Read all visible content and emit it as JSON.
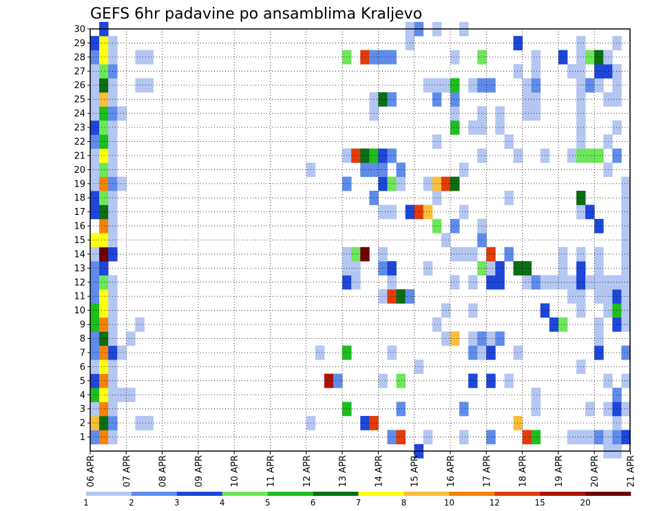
{
  "chart_data": {
    "type": "heatmap",
    "title": "GEFS 6hr padavine po ansamblima Kraljevo",
    "xlabel": "",
    "ylabel": "",
    "x_ticks": [
      "06 APR",
      "07 APR",
      "08 APR",
      "09 APR",
      "10 APR",
      "11 APR",
      "12 APR",
      "13 APR",
      "14 APR",
      "15 APR",
      "16 APR",
      "17 APR",
      "18 APR",
      "19 APR",
      "20 APR",
      "21 APR"
    ],
    "y_ticks": [
      "1",
      "2",
      "3",
      "4",
      "5",
      "6",
      "7",
      "8",
      "9",
      "10",
      "11",
      "12",
      "13",
      "14",
      "15",
      "16",
      "17",
      "18",
      "19",
      "20",
      "21",
      "22",
      "23",
      "24",
      "25",
      "26",
      "27",
      "28",
      "29",
      "30"
    ],
    "xlim": [
      0,
      60
    ],
    "ylim": [
      0,
      30
    ],
    "grid": true,
    "legend_position": "bottom",
    "legend": {
      "labels": [
        "1",
        "2",
        "3",
        "4",
        "5",
        "6",
        "7",
        "8",
        "10",
        "12",
        "15",
        "20"
      ],
      "colors": [
        "#b4c6f2",
        "#5f8ceb",
        "#1e46d8",
        "#6ee65a",
        "#1ebe1e",
        "#0a6e14",
        "#ffff14",
        "#fabe3c",
        "#f5820a",
        "#e13c0a",
        "#aa1400",
        "#6e0000"
      ]
    },
    "cells": [
      [
        3,
        1,
        2
      ],
      [
        3,
        2,
        8
      ],
      [
        3,
        3,
        1
      ],
      [
        3,
        4,
        5
      ],
      [
        3,
        5,
        3
      ],
      [
        3,
        6,
        1
      ],
      [
        3,
        7,
        2
      ],
      [
        3,
        8,
        2
      ],
      [
        3,
        9,
        5
      ],
      [
        3,
        10,
        5
      ],
      [
        3,
        11,
        2
      ],
      [
        3,
        12,
        2
      ],
      [
        3,
        13,
        2
      ],
      [
        3,
        14,
        1
      ],
      [
        3,
        15,
        7
      ],
      [
        3,
        17,
        3
      ],
      [
        3,
        18,
        3
      ],
      [
        3,
        19,
        1
      ],
      [
        3,
        20,
        1
      ],
      [
        3,
        21,
        1
      ],
      [
        3,
        22,
        2
      ],
      [
        3,
        23,
        3
      ],
      [
        3,
        24,
        1
      ],
      [
        3,
        25,
        1
      ],
      [
        3,
        26,
        1
      ],
      [
        3,
        27,
        1
      ],
      [
        3,
        28,
        2
      ],
      [
        3,
        29,
        3
      ],
      [
        4,
        1,
        9
      ],
      [
        4,
        2,
        6
      ],
      [
        4,
        3,
        9
      ],
      [
        4,
        4,
        7
      ],
      [
        4,
        5,
        9
      ],
      [
        4,
        6,
        7
      ],
      [
        4,
        7,
        9
      ],
      [
        4,
        8,
        6
      ],
      [
        4,
        9,
        9
      ],
      [
        4,
        10,
        7
      ],
      [
        4,
        11,
        7
      ],
      [
        4,
        12,
        4
      ],
      [
        4,
        13,
        3
      ],
      [
        4,
        14,
        12
      ],
      [
        4,
        15,
        7
      ],
      [
        4,
        16,
        9
      ],
      [
        4,
        17,
        6
      ],
      [
        4,
        18,
        4
      ],
      [
        4,
        19,
        9
      ],
      [
        4,
        20,
        4
      ],
      [
        4,
        21,
        7
      ],
      [
        4,
        22,
        5
      ],
      [
        4,
        23,
        4
      ],
      [
        4,
        24,
        5
      ],
      [
        4,
        25,
        8
      ],
      [
        4,
        26,
        6
      ],
      [
        4,
        27,
        4
      ],
      [
        4,
        28,
        7
      ],
      [
        4,
        29,
        7
      ],
      [
        4,
        30,
        3
      ],
      [
        5,
        1,
        1
      ],
      [
        5,
        2,
        2
      ],
      [
        5,
        3,
        1
      ],
      [
        5,
        4,
        1
      ],
      [
        5,
        5,
        1
      ],
      [
        5,
        6,
        1
      ],
      [
        5,
        7,
        3
      ],
      [
        5,
        8,
        1
      ],
      [
        5,
        9,
        1
      ],
      [
        5,
        10,
        1
      ],
      [
        5,
        11,
        1
      ],
      [
        5,
        12,
        1
      ],
      [
        5,
        14,
        3
      ],
      [
        5,
        15,
        1
      ],
      [
        5,
        16,
        1
      ],
      [
        5,
        17,
        1
      ],
      [
        5,
        18,
        1
      ],
      [
        5,
        19,
        2
      ],
      [
        5,
        20,
        1
      ],
      [
        5,
        21,
        1
      ],
      [
        5,
        22,
        1
      ],
      [
        5,
        23,
        1
      ],
      [
        5,
        24,
        2
      ],
      [
        5,
        25,
        1
      ],
      [
        5,
        26,
        1
      ],
      [
        5,
        27,
        2
      ],
      [
        5,
        28,
        1
      ],
      [
        5,
        29,
        1
      ],
      [
        6,
        4,
        1
      ],
      [
        6,
        7,
        1
      ],
      [
        6,
        19,
        1
      ],
      [
        6,
        24,
        1
      ],
      [
        7,
        4,
        1
      ],
      [
        7,
        8,
        1
      ],
      [
        8,
        2,
        1
      ],
      [
        8,
        9,
        1
      ],
      [
        8,
        26,
        1
      ],
      [
        8,
        28,
        1
      ],
      [
        9,
        2,
        1
      ],
      [
        9,
        26,
        1
      ],
      [
        9,
        28,
        1
      ],
      [
        27,
        2,
        1
      ],
      [
        27,
        20,
        1
      ],
      [
        28,
        7,
        1
      ],
      [
        29,
        5,
        11
      ],
      [
        30,
        5,
        2
      ],
      [
        31,
        3,
        5
      ],
      [
        31,
        7,
        5
      ],
      [
        31,
        12,
        3
      ],
      [
        31,
        13,
        1
      ],
      [
        31,
        14,
        1
      ],
      [
        31,
        19,
        2
      ],
      [
        31,
        21,
        1
      ],
      [
        31,
        28,
        4
      ],
      [
        32,
        12,
        1
      ],
      [
        32,
        13,
        1
      ],
      [
        32,
        14,
        4
      ],
      [
        32,
        21,
        10
      ],
      [
        33,
        2,
        3
      ],
      [
        33,
        14,
        12
      ],
      [
        33,
        20,
        2
      ],
      [
        33,
        21,
        6
      ],
      [
        33,
        28,
        10
      ],
      [
        34,
        2,
        10
      ],
      [
        34,
        18,
        2
      ],
      [
        34,
        20,
        2
      ],
      [
        34,
        21,
        5
      ],
      [
        34,
        24,
        1
      ],
      [
        34,
        25,
        1
      ],
      [
        34,
        28,
        2
      ],
      [
        35,
        5,
        1
      ],
      [
        35,
        11,
        1
      ],
      [
        35,
        13,
        2
      ],
      [
        35,
        14,
        1
      ],
      [
        35,
        17,
        1
      ],
      [
        35,
        19,
        3
      ],
      [
        35,
        20,
        2
      ],
      [
        35,
        21,
        3
      ],
      [
        35,
        25,
        6
      ],
      [
        35,
        28,
        2
      ],
      [
        36,
        1,
        2
      ],
      [
        36,
        7,
        1
      ],
      [
        36,
        11,
        10
      ],
      [
        36,
        12,
        1
      ],
      [
        36,
        13,
        3
      ],
      [
        36,
        17,
        1
      ],
      [
        36,
        19,
        4
      ],
      [
        36,
        21,
        2
      ],
      [
        36,
        25,
        2
      ],
      [
        36,
        28,
        2
      ],
      [
        37,
        1,
        10
      ],
      [
        37,
        3,
        2
      ],
      [
        37,
        5,
        4
      ],
      [
        37,
        11,
        6
      ],
      [
        37,
        19,
        1
      ],
      [
        37,
        20,
        2
      ],
      [
        38,
        11,
        2
      ],
      [
        38,
        17,
        3
      ],
      [
        38,
        29,
        1
      ],
      [
        38,
        30,
        1
      ],
      [
        39,
        0,
        3
      ],
      [
        39,
        6,
        1
      ],
      [
        39,
        17,
        10
      ],
      [
        39,
        30,
        2
      ],
      [
        40,
        1,
        1
      ],
      [
        40,
        13,
        1
      ],
      [
        40,
        17,
        8
      ],
      [
        40,
        19,
        1
      ],
      [
        40,
        26,
        1
      ],
      [
        41,
        9,
        1
      ],
      [
        41,
        16,
        4
      ],
      [
        41,
        18,
        1
      ],
      [
        41,
        19,
        8
      ],
      [
        41,
        22,
        1
      ],
      [
        41,
        25,
        2
      ],
      [
        41,
        26,
        1
      ],
      [
        41,
        30,
        1
      ],
      [
        42,
        8,
        1
      ],
      [
        42,
        10,
        1
      ],
      [
        42,
        15,
        1
      ],
      [
        42,
        19,
        10
      ],
      [
        42,
        26,
        1
      ],
      [
        43,
        8,
        8
      ],
      [
        43,
        12,
        1
      ],
      [
        43,
        14,
        1
      ],
      [
        43,
        16,
        2
      ],
      [
        43,
        19,
        6
      ],
      [
        43,
        23,
        5
      ],
      [
        43,
        24,
        1
      ],
      [
        43,
        25,
        2
      ],
      [
        43,
        26,
        5
      ],
      [
        43,
        28,
        1
      ],
      [
        44,
        1,
        1
      ],
      [
        44,
        3,
        2
      ],
      [
        44,
        14,
        1
      ],
      [
        44,
        17,
        1
      ],
      [
        44,
        20,
        1
      ],
      [
        44,
        30,
        1
      ],
      [
        45,
        5,
        3
      ],
      [
        45,
        7,
        2
      ],
      [
        45,
        8,
        1
      ],
      [
        45,
        10,
        1
      ],
      [
        45,
        12,
        1
      ],
      [
        45,
        14,
        1
      ],
      [
        45,
        23,
        1
      ],
      [
        45,
        26,
        1
      ],
      [
        46,
        7,
        1
      ],
      [
        46,
        8,
        2
      ],
      [
        46,
        13,
        4
      ],
      [
        46,
        15,
        2
      ],
      [
        46,
        16,
        1
      ],
      [
        46,
        21,
        1
      ],
      [
        46,
        23,
        1
      ],
      [
        46,
        24,
        1
      ],
      [
        46,
        26,
        2
      ],
      [
        46,
        28,
        4
      ],
      [
        47,
        1,
        2
      ],
      [
        47,
        5,
        3
      ],
      [
        47,
        7,
        3
      ],
      [
        47,
        8,
        1
      ],
      [
        47,
        12,
        3
      ],
      [
        47,
        13,
        1
      ],
      [
        47,
        14,
        10
      ],
      [
        47,
        26,
        2
      ],
      [
        48,
        8,
        2
      ],
      [
        48,
        12,
        3
      ],
      [
        48,
        13,
        3
      ],
      [
        48,
        23,
        1
      ],
      [
        48,
        24,
        1
      ],
      [
        49,
        5,
        1
      ],
      [
        49,
        14,
        2
      ],
      [
        49,
        18,
        1
      ],
      [
        49,
        22,
        1
      ],
      [
        50,
        2,
        8
      ],
      [
        50,
        7,
        1
      ],
      [
        50,
        13,
        6
      ],
      [
        50,
        21,
        1
      ],
      [
        50,
        27,
        1
      ],
      [
        50,
        29,
        3
      ],
      [
        51,
        1,
        10
      ],
      [
        51,
        12,
        1
      ],
      [
        51,
        13,
        6
      ],
      [
        51,
        24,
        1
      ],
      [
        51,
        25,
        1
      ],
      [
        51,
        26,
        1
      ],
      [
        52,
        1,
        5
      ],
      [
        52,
        3,
        1
      ],
      [
        52,
        4,
        1
      ],
      [
        52,
        12,
        2
      ],
      [
        52,
        24,
        1
      ],
      [
        52,
        25,
        1
      ],
      [
        52,
        26,
        2
      ],
      [
        52,
        27,
        1
      ],
      [
        52,
        28,
        1
      ],
      [
        53,
        10,
        3
      ],
      [
        53,
        12,
        1
      ],
      [
        53,
        21,
        1
      ],
      [
        54,
        9,
        3
      ],
      [
        54,
        12,
        1
      ],
      [
        55,
        9,
        4
      ],
      [
        55,
        12,
        1
      ],
      [
        55,
        13,
        1
      ],
      [
        55,
        14,
        1
      ],
      [
        55,
        28,
        3
      ],
      [
        56,
        1,
        1
      ],
      [
        56,
        11,
        1
      ],
      [
        56,
        12,
        1
      ],
      [
        56,
        21,
        1
      ],
      [
        56,
        27,
        1
      ],
      [
        57,
        1,
        1
      ],
      [
        57,
        6,
        1
      ],
      [
        57,
        10,
        1
      ],
      [
        57,
        11,
        1
      ],
      [
        57,
        12,
        3
      ],
      [
        57,
        13,
        3
      ],
      [
        57,
        14,
        1
      ],
      [
        57,
        17,
        1
      ],
      [
        57,
        18,
        6
      ],
      [
        57,
        21,
        4
      ],
      [
        57,
        22,
        1
      ],
      [
        57,
        23,
        1
      ],
      [
        57,
        24,
        1
      ],
      [
        57,
        25,
        1
      ],
      [
        57,
        26,
        1
      ],
      [
        57,
        27,
        1
      ],
      [
        57,
        28,
        1
      ],
      [
        57,
        29,
        1
      ],
      [
        58,
        1,
        1
      ],
      [
        58,
        3,
        1
      ],
      [
        58,
        12,
        1
      ],
      [
        58,
        17,
        3
      ],
      [
        58,
        21,
        4
      ],
      [
        58,
        26,
        2
      ],
      [
        58,
        28,
        4
      ],
      [
        59,
        1,
        2
      ],
      [
        59,
        7,
        3
      ],
      [
        59,
        8,
        1
      ],
      [
        59,
        9,
        1
      ],
      [
        59,
        11,
        1
      ],
      [
        59,
        12,
        1
      ],
      [
        59,
        13,
        1
      ],
      [
        59,
        14,
        1
      ],
      [
        59,
        16,
        3
      ],
      [
        59,
        21,
        4
      ],
      [
        59,
        26,
        1
      ],
      [
        59,
        27,
        3
      ],
      [
        59,
        28,
        6
      ],
      [
        60,
        0,
        1
      ],
      [
        60,
        1,
        1
      ],
      [
        60,
        3,
        1
      ],
      [
        60,
        5,
        1
      ],
      [
        60,
        10,
        1
      ],
      [
        60,
        11,
        1
      ],
      [
        60,
        12,
        1
      ],
      [
        60,
        20,
        1
      ],
      [
        60,
        22,
        1
      ],
      [
        60,
        25,
        1
      ],
      [
        60,
        27,
        3
      ],
      [
        60,
        28,
        1
      ],
      [
        61,
        0,
        1
      ],
      [
        61,
        1,
        2
      ],
      [
        61,
        2,
        1
      ],
      [
        61,
        3,
        3
      ],
      [
        61,
        4,
        2
      ],
      [
        61,
        9,
        3
      ],
      [
        61,
        10,
        5
      ],
      [
        61,
        11,
        3
      ],
      [
        61,
        12,
        1
      ],
      [
        61,
        21,
        2
      ],
      [
        61,
        23,
        1
      ],
      [
        61,
        25,
        1
      ],
      [
        61,
        26,
        1
      ],
      [
        61,
        27,
        1
      ],
      [
        61,
        29,
        1
      ],
      [
        62,
        1,
        3
      ],
      [
        62,
        3,
        1
      ],
      [
        62,
        5,
        1
      ],
      [
        62,
        7,
        2
      ],
      [
        62,
        9,
        1
      ],
      [
        62,
        10,
        1
      ],
      [
        62,
        11,
        1
      ],
      [
        62,
        12,
        1
      ],
      [
        62,
        13,
        1
      ],
      [
        62,
        14,
        1
      ],
      [
        62,
        15,
        1
      ],
      [
        62,
        16,
        1
      ],
      [
        62,
        17,
        1
      ],
      [
        62,
        18,
        1
      ],
      [
        62,
        19,
        1
      ]
    ]
  }
}
